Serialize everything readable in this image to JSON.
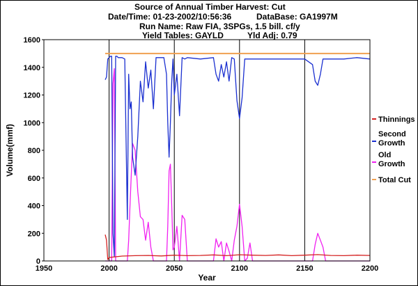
{
  "header": {
    "title": "Source of Annual Timber Harvest: Cut",
    "datetime": "Date/Time: 01-23-2002/10:56:36",
    "database": "DataBase: GA1997M",
    "run_name": "Run Name: Raw FIA, 3SPGs, 1.5 bill. cf/y",
    "yield_tables": "Yield Tables: GAYLD",
    "yld_adj": "Yld Adj: 0.79"
  },
  "chart_data": {
    "type": "line",
    "title": "Source of Annual Timber Harvest: Cut",
    "xlabel": "Year",
    "ylabel": "Volume(mmf)",
    "xlim": [
      1950,
      2200
    ],
    "ylim": [
      0,
      1600
    ],
    "x_ticks": [
      "1950",
      "2000",
      "2050",
      "2100",
      "2150",
      "2200"
    ],
    "y_ticks": [
      "0",
      "200",
      "400",
      "600",
      "800",
      "1000",
      "1200",
      "1400",
      "1600"
    ],
    "grid": "vertical",
    "legend_position": "right",
    "series": [
      {
        "name": "Thinnings",
        "color": "#d42020",
        "x": [
          1997,
          1998,
          1999,
          2000,
          2005,
          2010,
          2020,
          2030,
          2040,
          2050,
          2060,
          2070,
          2080,
          2090,
          2100,
          2110,
          2120,
          2130,
          2140,
          2150,
          2160,
          2170,
          2180,
          2190,
          2200
        ],
        "y": [
          190,
          150,
          10,
          25,
          30,
          35,
          38,
          40,
          36,
          42,
          38,
          40,
          44,
          38,
          45,
          42,
          40,
          44,
          38,
          42,
          46,
          40,
          38,
          42,
          40
        ]
      },
      {
        "name": "Second Growth",
        "color": "#1a2fd0",
        "x": [
          1997,
          1998,
          1999,
          2000,
          2001,
          2002,
          2003,
          2004,
          2005,
          2006,
          2007,
          2008,
          2010,
          2012,
          2014,
          2015,
          2016,
          2017,
          2018,
          2020,
          2022,
          2024,
          2026,
          2028,
          2030,
          2032,
          2034,
          2036,
          2038,
          2040,
          2042,
          2044,
          2045,
          2046,
          2047,
          2048,
          2049,
          2050,
          2052,
          2054,
          2056,
          2058,
          2060,
          2070,
          2080,
          2082,
          2084,
          2086,
          2088,
          2090,
          2092,
          2094,
          2096,
          2098,
          2100,
          2102,
          2104,
          2106,
          2110,
          2120,
          2130,
          2140,
          2150,
          2156,
          2158,
          2160,
          2162,
          2164,
          2166,
          2170,
          2180,
          2190,
          2200
        ],
        "y": [
          1310,
          1330,
          1460,
          1470,
          1480,
          1480,
          200,
          30,
          1480,
          1480,
          1470,
          1470,
          1470,
          1460,
          300,
          1350,
          1100,
          1150,
          750,
          620,
          900,
          1300,
          1150,
          1440,
          1250,
          1380,
          1100,
          1470,
          1470,
          1470,
          1470,
          1350,
          1000,
          750,
          1000,
          1300,
          1460,
          1200,
          1350,
          1050,
          1470,
          1460,
          1470,
          1460,
          1470,
          1350,
          1300,
          1420,
          1330,
          1440,
          1300,
          1470,
          1460,
          1160,
          1030,
          1180,
          1460,
          1460,
          1460,
          1460,
          1460,
          1460,
          1460,
          1420,
          1300,
          1270,
          1350,
          1460,
          1460,
          1460,
          1460,
          1470,
          1460
        ]
      },
      {
        "name": "Old Growth",
        "color": "#f020f0",
        "x": [
          1997,
          2000,
          2001,
          2002,
          2003,
          2004,
          2005,
          2006,
          2010,
          2014,
          2015,
          2016,
          2018,
          2020,
          2022,
          2024,
          2026,
          2028,
          2030,
          2032,
          2034,
          2036,
          2038,
          2040,
          2044,
          2045,
          2046,
          2047,
          2048,
          2049,
          2050,
          2052,
          2054,
          2056,
          2058,
          2060,
          2080,
          2082,
          2084,
          2086,
          2088,
          2090,
          2092,
          2094,
          2096,
          2098,
          2100,
          2102,
          2104,
          2106,
          2108,
          2110,
          2156,
          2158,
          2160,
          2162,
          2164,
          2166,
          2200
        ],
        "y": [
          0,
          0,
          0,
          0,
          1280,
          1390,
          0,
          0,
          0,
          0,
          150,
          400,
          850,
          800,
          500,
          320,
          300,
          150,
          280,
          100,
          0,
          0,
          0,
          0,
          0,
          250,
          650,
          700,
          400,
          80,
          100,
          250,
          0,
          330,
          300,
          0,
          0,
          160,
          100,
          140,
          0,
          130,
          70,
          0,
          150,
          250,
          410,
          250,
          0,
          20,
          130,
          0,
          0,
          120,
          200,
          150,
          100,
          0,
          0
        ]
      },
      {
        "name": "Total Cut",
        "color": "#f0a050",
        "x": [
          1997,
          2200
        ],
        "y": [
          1500,
          1500
        ]
      }
    ]
  }
}
